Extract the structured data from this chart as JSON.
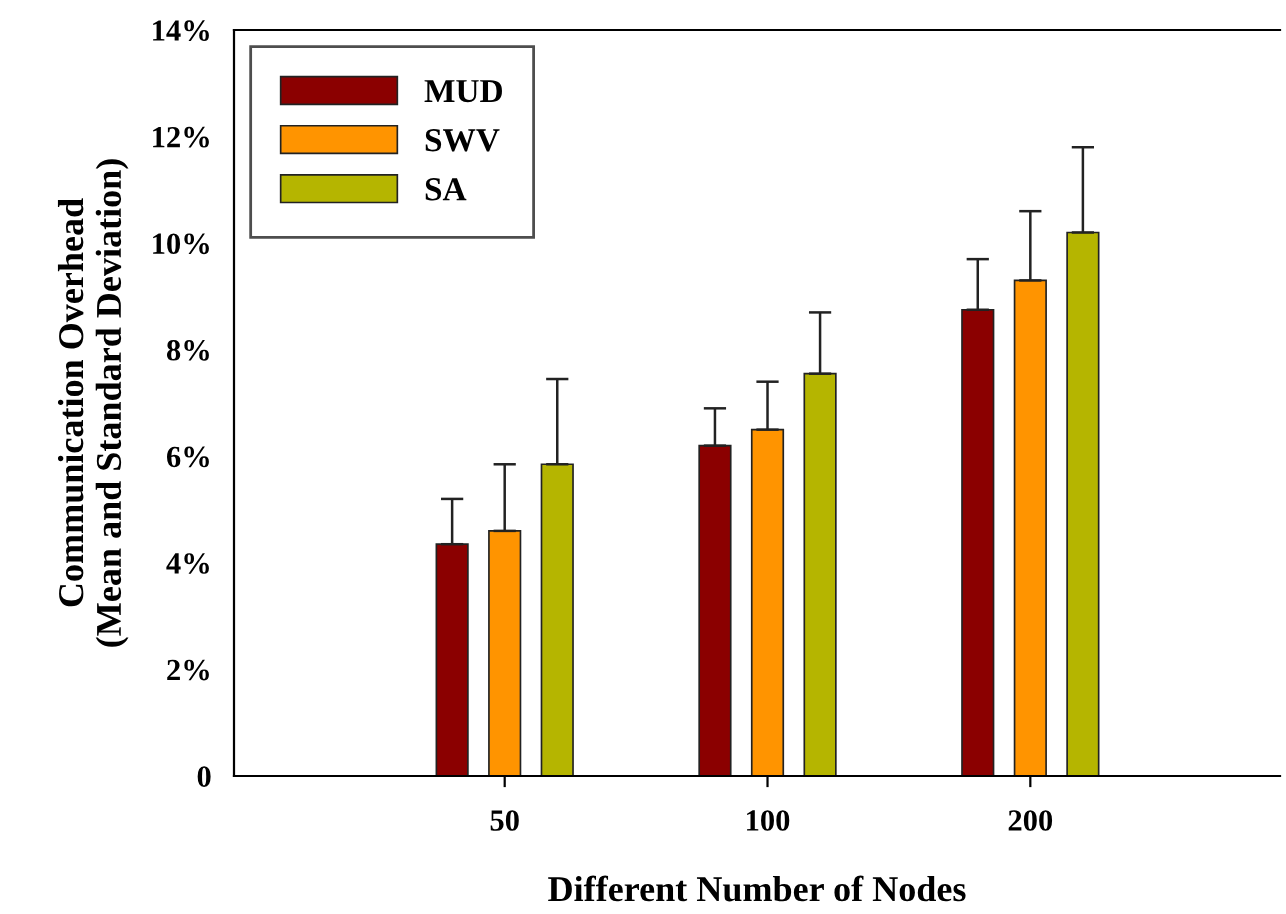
{
  "chart_data": {
    "type": "bar",
    "xlabel": "Different Number of Nodes",
    "ylabel": "Communication Overhead\n(Mean and Standard Deviation)",
    "categories": [
      "50",
      "100",
      "200"
    ],
    "series": [
      {
        "name": "MUD",
        "color": "#8b0000",
        "values": [
          4.35,
          6.2,
          8.75
        ],
        "errors": [
          [
            4.35,
            5.2
          ],
          [
            6.2,
            6.9
          ],
          [
            8.75,
            9.7
          ]
        ]
      },
      {
        "name": "SWV",
        "color": "#ff9400",
        "values": [
          4.6,
          6.5,
          9.3
        ],
        "errors": [
          [
            4.6,
            5.85
          ],
          [
            6.5,
            7.4
          ],
          [
            9.3,
            10.6
          ]
        ]
      },
      {
        "name": "SA",
        "color": "#b5b500",
        "values": [
          5.85,
          7.55,
          10.2
        ],
        "errors": [
          [
            5.85,
            7.45
          ],
          [
            7.55,
            8.7
          ],
          [
            10.2,
            11.8
          ]
        ]
      }
    ],
    "ylim": [
      0,
      14
    ],
    "yticks": [
      0,
      {
        "value": 2,
        "label": "2%"
      },
      {
        "value": 4,
        "label": "4%"
      },
      {
        "value": 6,
        "label": "6%"
      },
      {
        "value": 8,
        "label": "8%"
      },
      {
        "value": 10,
        "label": "10%"
      },
      {
        "value": 12,
        "label": "12%"
      },
      {
        "value": 14,
        "label": "14%"
      }
    ],
    "grid": false,
    "legend": "top left"
  }
}
